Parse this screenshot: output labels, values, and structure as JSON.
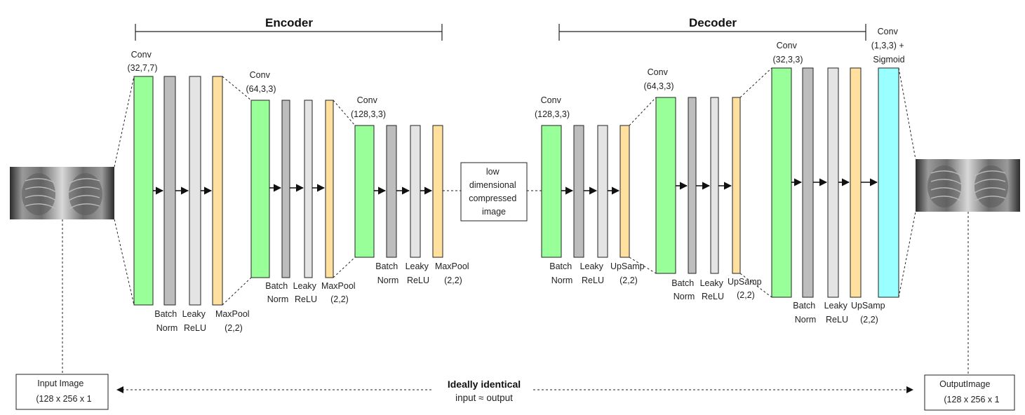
{
  "headers": {
    "encoder": "Encoder",
    "decoder": "Decoder"
  },
  "colors": {
    "conv": "#99ff99",
    "batchnorm": "#bdbdbd",
    "relu": "#e4e4e4",
    "pool": "#ffe09e",
    "final_conv": "#99ffff"
  },
  "encoder": {
    "block1": {
      "conv": [
        "Conv",
        "(32,7,7)"
      ],
      "batchnorm": [
        "Batch",
        "Norm"
      ],
      "relu": [
        "Leaky",
        "ReLU"
      ],
      "pool": [
        "MaxPool",
        "(2,2)"
      ]
    },
    "block2": {
      "conv": [
        "Conv",
        "(64,3,3)"
      ],
      "batchnorm": [
        "Batch",
        "Norm"
      ],
      "relu": [
        "Leaky",
        "ReLU"
      ],
      "pool": [
        "MaxPool",
        "(2,2)"
      ]
    },
    "block3": {
      "conv": [
        "Conv",
        "(128,3,3)"
      ],
      "batchnorm": [
        "Batch",
        "Norm"
      ],
      "relu": [
        "Leaky",
        "ReLU"
      ],
      "pool": [
        "MaxPool",
        "(2,2)"
      ]
    }
  },
  "bottleneck": [
    "low",
    "dimensional",
    "compressed",
    "image"
  ],
  "decoder": {
    "block1": {
      "conv": [
        "Conv",
        "(128,3,3)"
      ],
      "batchnorm": [
        "Batch",
        "Norm"
      ],
      "relu": [
        "Leaky",
        "ReLU"
      ],
      "upsamp": [
        "UpSamp",
        "(2,2)"
      ]
    },
    "block2": {
      "conv": [
        "Conv",
        "(64,3,3)"
      ],
      "batchnorm": [
        "Batch",
        "Norm"
      ],
      "relu": [
        "Leaky",
        "ReLU"
      ],
      "upsamp": [
        "UpSamp",
        "(2,2)"
      ]
    },
    "block3": {
      "conv": [
        "Conv",
        "(32,3,3)"
      ],
      "batchnorm": [
        "Batch",
        "Norm"
      ],
      "relu": [
        "Leaky",
        "ReLU"
      ],
      "upsamp": [
        "UpSamp",
        "(2,2)"
      ]
    },
    "final": [
      "Conv",
      "(1,3,3) +",
      "Sigmoid"
    ]
  },
  "input_box": [
    "Input Image",
    "(128 x 256 x 1"
  ],
  "output_box": [
    "OutputImage",
    "(128 x 256 x 1"
  ],
  "comparison": {
    "title": "Ideally identical",
    "subtitle": "input ≈ output"
  }
}
